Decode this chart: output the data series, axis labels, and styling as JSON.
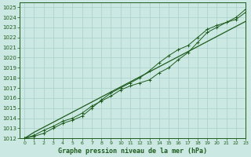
{
  "title": "Graphe pression niveau de la mer (hPa)",
  "bg_color": "#cce8e2",
  "grid_color": "#a8d0ca",
  "line_color": "#1e5c1e",
  "xlim": [
    -0.5,
    23
  ],
  "ylim": [
    1012,
    1025.5
  ],
  "xticks": [
    0,
    1,
    2,
    3,
    4,
    5,
    6,
    7,
    8,
    9,
    10,
    11,
    12,
    13,
    14,
    15,
    16,
    17,
    18,
    19,
    20,
    21,
    22,
    23
  ],
  "yticks": [
    1012,
    1013,
    1014,
    1015,
    1016,
    1017,
    1018,
    1019,
    1020,
    1021,
    1022,
    1023,
    1024,
    1025
  ],
  "series": [
    {
      "y": [
        1012.0,
        1012.2,
        1012.5,
        1013.0,
        1013.5,
        1013.8,
        1014.2,
        1015.0,
        1015.8,
        1016.5,
        1017.0,
        1017.5,
        1018.0,
        1018.7,
        1019.5,
        1020.2,
        1020.8,
        1021.2,
        1022.0,
        1022.8,
        1023.2,
        1023.5,
        1023.8,
        1024.5
      ],
      "marker": true,
      "lw": 0.7
    },
    {
      "y": [
        1012.0,
        1012.3,
        1012.8,
        1013.2,
        1013.7,
        1014.0,
        1014.5,
        1015.2,
        1015.7,
        1016.2,
        1016.8,
        1017.2,
        1017.5,
        1017.8,
        1018.5,
        1019.0,
        1019.8,
        1020.5,
        1021.5,
        1022.5,
        1023.0,
        1023.5,
        1024.0,
        1024.8
      ],
      "marker": true,
      "lw": 0.7
    },
    {
      "y": [
        1012.0,
        1012.6,
        1013.1,
        1013.6,
        1014.1,
        1014.6,
        1015.1,
        1015.6,
        1016.1,
        1016.6,
        1017.1,
        1017.6,
        1018.1,
        1018.6,
        1019.1,
        1019.6,
        1020.1,
        1020.6,
        1021.1,
        1021.6,
        1022.1,
        1022.6,
        1023.1,
        1023.6
      ],
      "marker": false,
      "lw": 0.9
    }
  ],
  "tick_fontsize": 5,
  "label_fontsize": 6,
  "title_fontweight": "bold"
}
